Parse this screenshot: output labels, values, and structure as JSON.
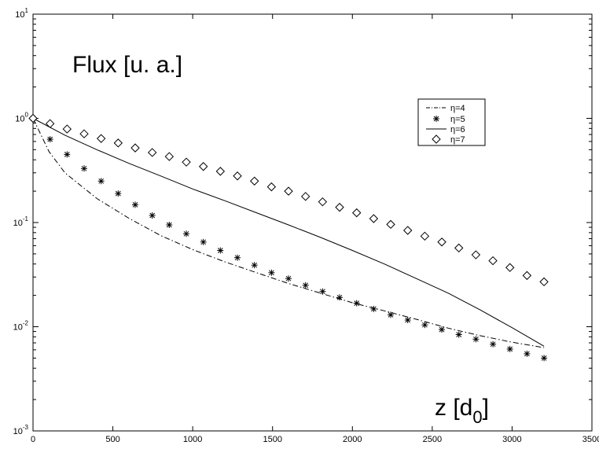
{
  "chart_data": {
    "type": "line",
    "title": "Flux [u. a.]",
    "xlabel": {
      "main": "z [d",
      "sub": "0",
      "close": "]"
    },
    "ylabel": "",
    "xlim": [
      0,
      3500
    ],
    "ylim": [
      0.001,
      10
    ],
    "yscale": "log",
    "xticks": [
      "0",
      "500",
      "1000",
      "1500",
      "2000",
      "2500",
      "3000",
      "3500"
    ],
    "yticks": [
      {
        "base": "10",
        "exp": "-3"
      },
      {
        "base": "10",
        "exp": "-2"
      },
      {
        "base": "10",
        "exp": "-1"
      },
      {
        "base": "10",
        "exp": "0"
      },
      {
        "base": "10",
        "exp": "1"
      }
    ],
    "grid": false,
    "legend_position": "top-right",
    "series": [
      {
        "name": "η=4",
        "style": "dash-dot",
        "x": [
          0,
          100,
          200,
          400,
          600,
          800,
          1000,
          1200,
          1400,
          1600,
          1800,
          2000,
          2200,
          2400,
          2600,
          2800,
          3000,
          3200
        ],
        "y": [
          1.0,
          0.48,
          0.3,
          0.17,
          0.11,
          0.075,
          0.055,
          0.042,
          0.033,
          0.026,
          0.021,
          0.017,
          0.0142,
          0.0118,
          0.0097,
          0.0082,
          0.0071,
          0.0063
        ]
      },
      {
        "name": "η=5",
        "style": "star",
        "x": [
          0,
          106.7,
          213.3,
          320,
          426.7,
          533.3,
          640,
          746.7,
          853.3,
          960,
          1066.7,
          1173.3,
          1280,
          1386.7,
          1493.3,
          1600,
          1706.7,
          1813.3,
          1920,
          2026.7,
          2133.3,
          2240,
          2346.7,
          2453.3,
          2560,
          2666.7,
          2773.3,
          2880,
          2986.7,
          3093.3,
          3200
        ],
        "y": [
          1.0,
          0.63,
          0.45,
          0.33,
          0.25,
          0.19,
          0.148,
          0.117,
          0.095,
          0.078,
          0.065,
          0.054,
          0.046,
          0.039,
          0.033,
          0.029,
          0.025,
          0.0218,
          0.0191,
          0.0168,
          0.0148,
          0.013,
          0.0116,
          0.0104,
          0.0094,
          0.0084,
          0.0076,
          0.0068,
          0.0061,
          0.0055,
          0.005
        ]
      },
      {
        "name": "η=6",
        "style": "solid",
        "x": [
          0,
          200,
          400,
          600,
          800,
          1000,
          1200,
          1400,
          1600,
          1800,
          2000,
          2200,
          2400,
          2600,
          2800,
          3000,
          3200
        ],
        "y": [
          1.0,
          0.69,
          0.5,
          0.37,
          0.28,
          0.21,
          0.162,
          0.124,
          0.095,
          0.072,
          0.054,
          0.04,
          0.029,
          0.021,
          0.0145,
          0.0098,
          0.0065
        ]
      },
      {
        "name": "η=7",
        "style": "diamond",
        "x": [
          0,
          106.7,
          213.3,
          320,
          426.7,
          533.3,
          640,
          746.7,
          853.3,
          960,
          1066.7,
          1173.3,
          1280,
          1386.7,
          1493.3,
          1600,
          1706.7,
          1813.3,
          1920,
          2026.7,
          2133.3,
          2240,
          2346.7,
          2453.3,
          2560,
          2666.7,
          2773.3,
          2880,
          2986.7,
          3093.3,
          3200
        ],
        "y": [
          1.0,
          0.89,
          0.79,
          0.71,
          0.64,
          0.58,
          0.52,
          0.47,
          0.43,
          0.38,
          0.345,
          0.31,
          0.28,
          0.25,
          0.22,
          0.2,
          0.178,
          0.158,
          0.14,
          0.124,
          0.109,
          0.096,
          0.084,
          0.074,
          0.065,
          0.057,
          0.049,
          0.043,
          0.037,
          0.031,
          0.027
        ]
      }
    ]
  }
}
